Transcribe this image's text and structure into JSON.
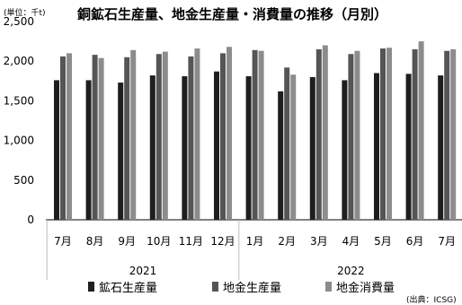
{
  "chart_data": {
    "type": "bar",
    "title": "銅鉱石生産量、地金生産量・消費量の推移（月別）",
    "unit_label": "(単位：千t)",
    "source": "(出典：ICSG)",
    "categories": [
      "7月",
      "8月",
      "9月",
      "10月",
      "11月",
      "12月",
      "1月",
      "2月",
      "3月",
      "4月",
      "5月",
      "6月",
      "7月"
    ],
    "years": [
      {
        "label": "2021",
        "from": 0,
        "to": 5
      },
      {
        "label": "2022",
        "from": 6,
        "to": 12
      }
    ],
    "ylim": [
      0,
      2500
    ],
    "yticks": [
      "0",
      "500",
      "1,000",
      "1,500",
      "2,000",
      "2,500"
    ],
    "ytick_values": [
      0,
      500,
      1000,
      1500,
      2000,
      2500
    ],
    "grid": false,
    "legend_position": "bottom",
    "series": [
      {
        "name": "鉱石生産量",
        "color": "#1e1e1e",
        "values": [
          1760,
          1760,
          1730,
          1820,
          1810,
          1870,
          1810,
          1620,
          1800,
          1760,
          1850,
          1840,
          1820
        ]
      },
      {
        "name": "地金生産量",
        "color": "#555555",
        "values": [
          2060,
          2080,
          2050,
          2090,
          2060,
          2100,
          2140,
          1920,
          2150,
          2090,
          2160,
          2150,
          2130
        ]
      },
      {
        "name": "地金消費量",
        "color": "#8c8c8c",
        "values": [
          2100,
          2040,
          2140,
          2120,
          2160,
          2180,
          2130,
          1830,
          2200,
          2130,
          2170,
          2250,
          2150
        ]
      }
    ]
  }
}
